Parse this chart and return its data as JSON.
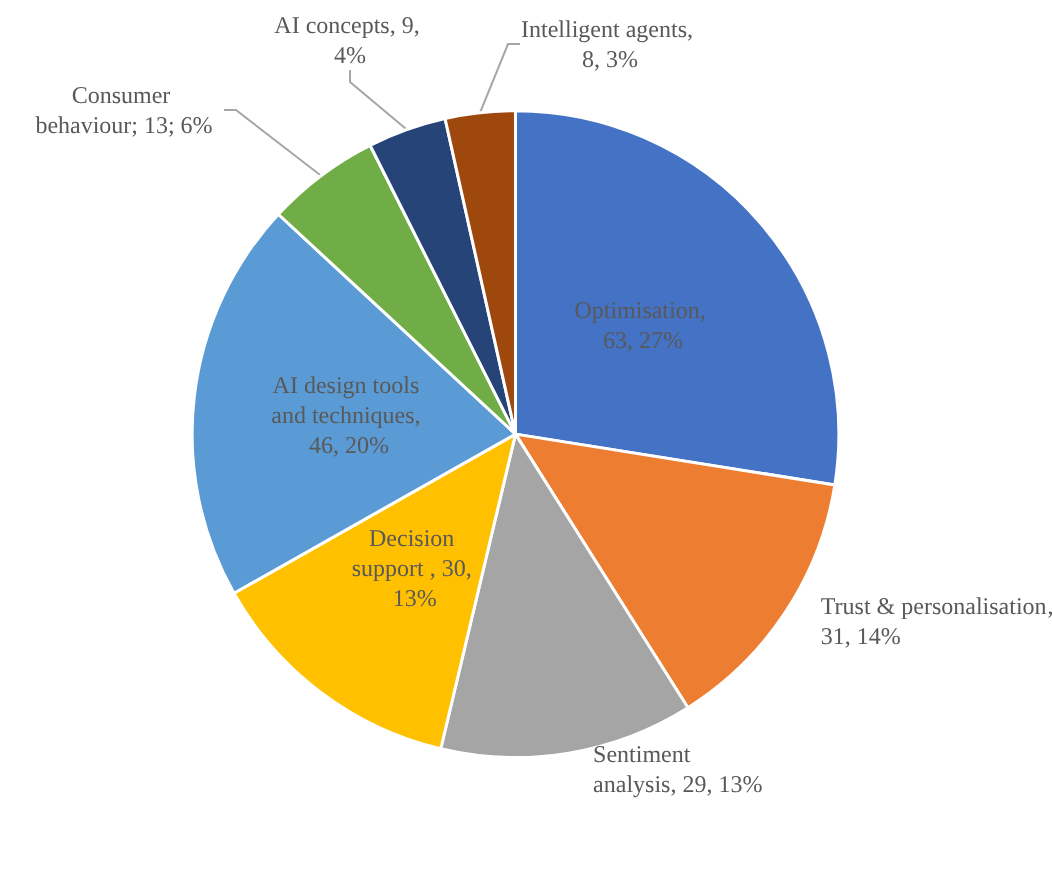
{
  "chart_data": {
    "type": "pie",
    "categories": [
      "Optimisation",
      "Trust & personalisation",
      "Sentiment analysis",
      "Decision support",
      "AI design tools and techniques",
      "Consumer behaviour",
      "AI concepts",
      "Intelligent agents"
    ],
    "values": [
      63,
      31,
      29,
      30,
      46,
      13,
      9,
      8
    ],
    "colors": [
      "#4472c4",
      "#ed7d31",
      "#a5a5a5",
      "#ffc000",
      "#5b9bd5",
      "#70ad47",
      "#264478",
      "#9e480e"
    ],
    "value_labels": [
      ", 63, 27%",
      ", 31, 14%",
      ", 29, 13%",
      " , 30, 13%",
      ", 46, 20%",
      "; 13; 6%",
      ", 9, 4%",
      ", 8, 3%"
    ]
  }
}
